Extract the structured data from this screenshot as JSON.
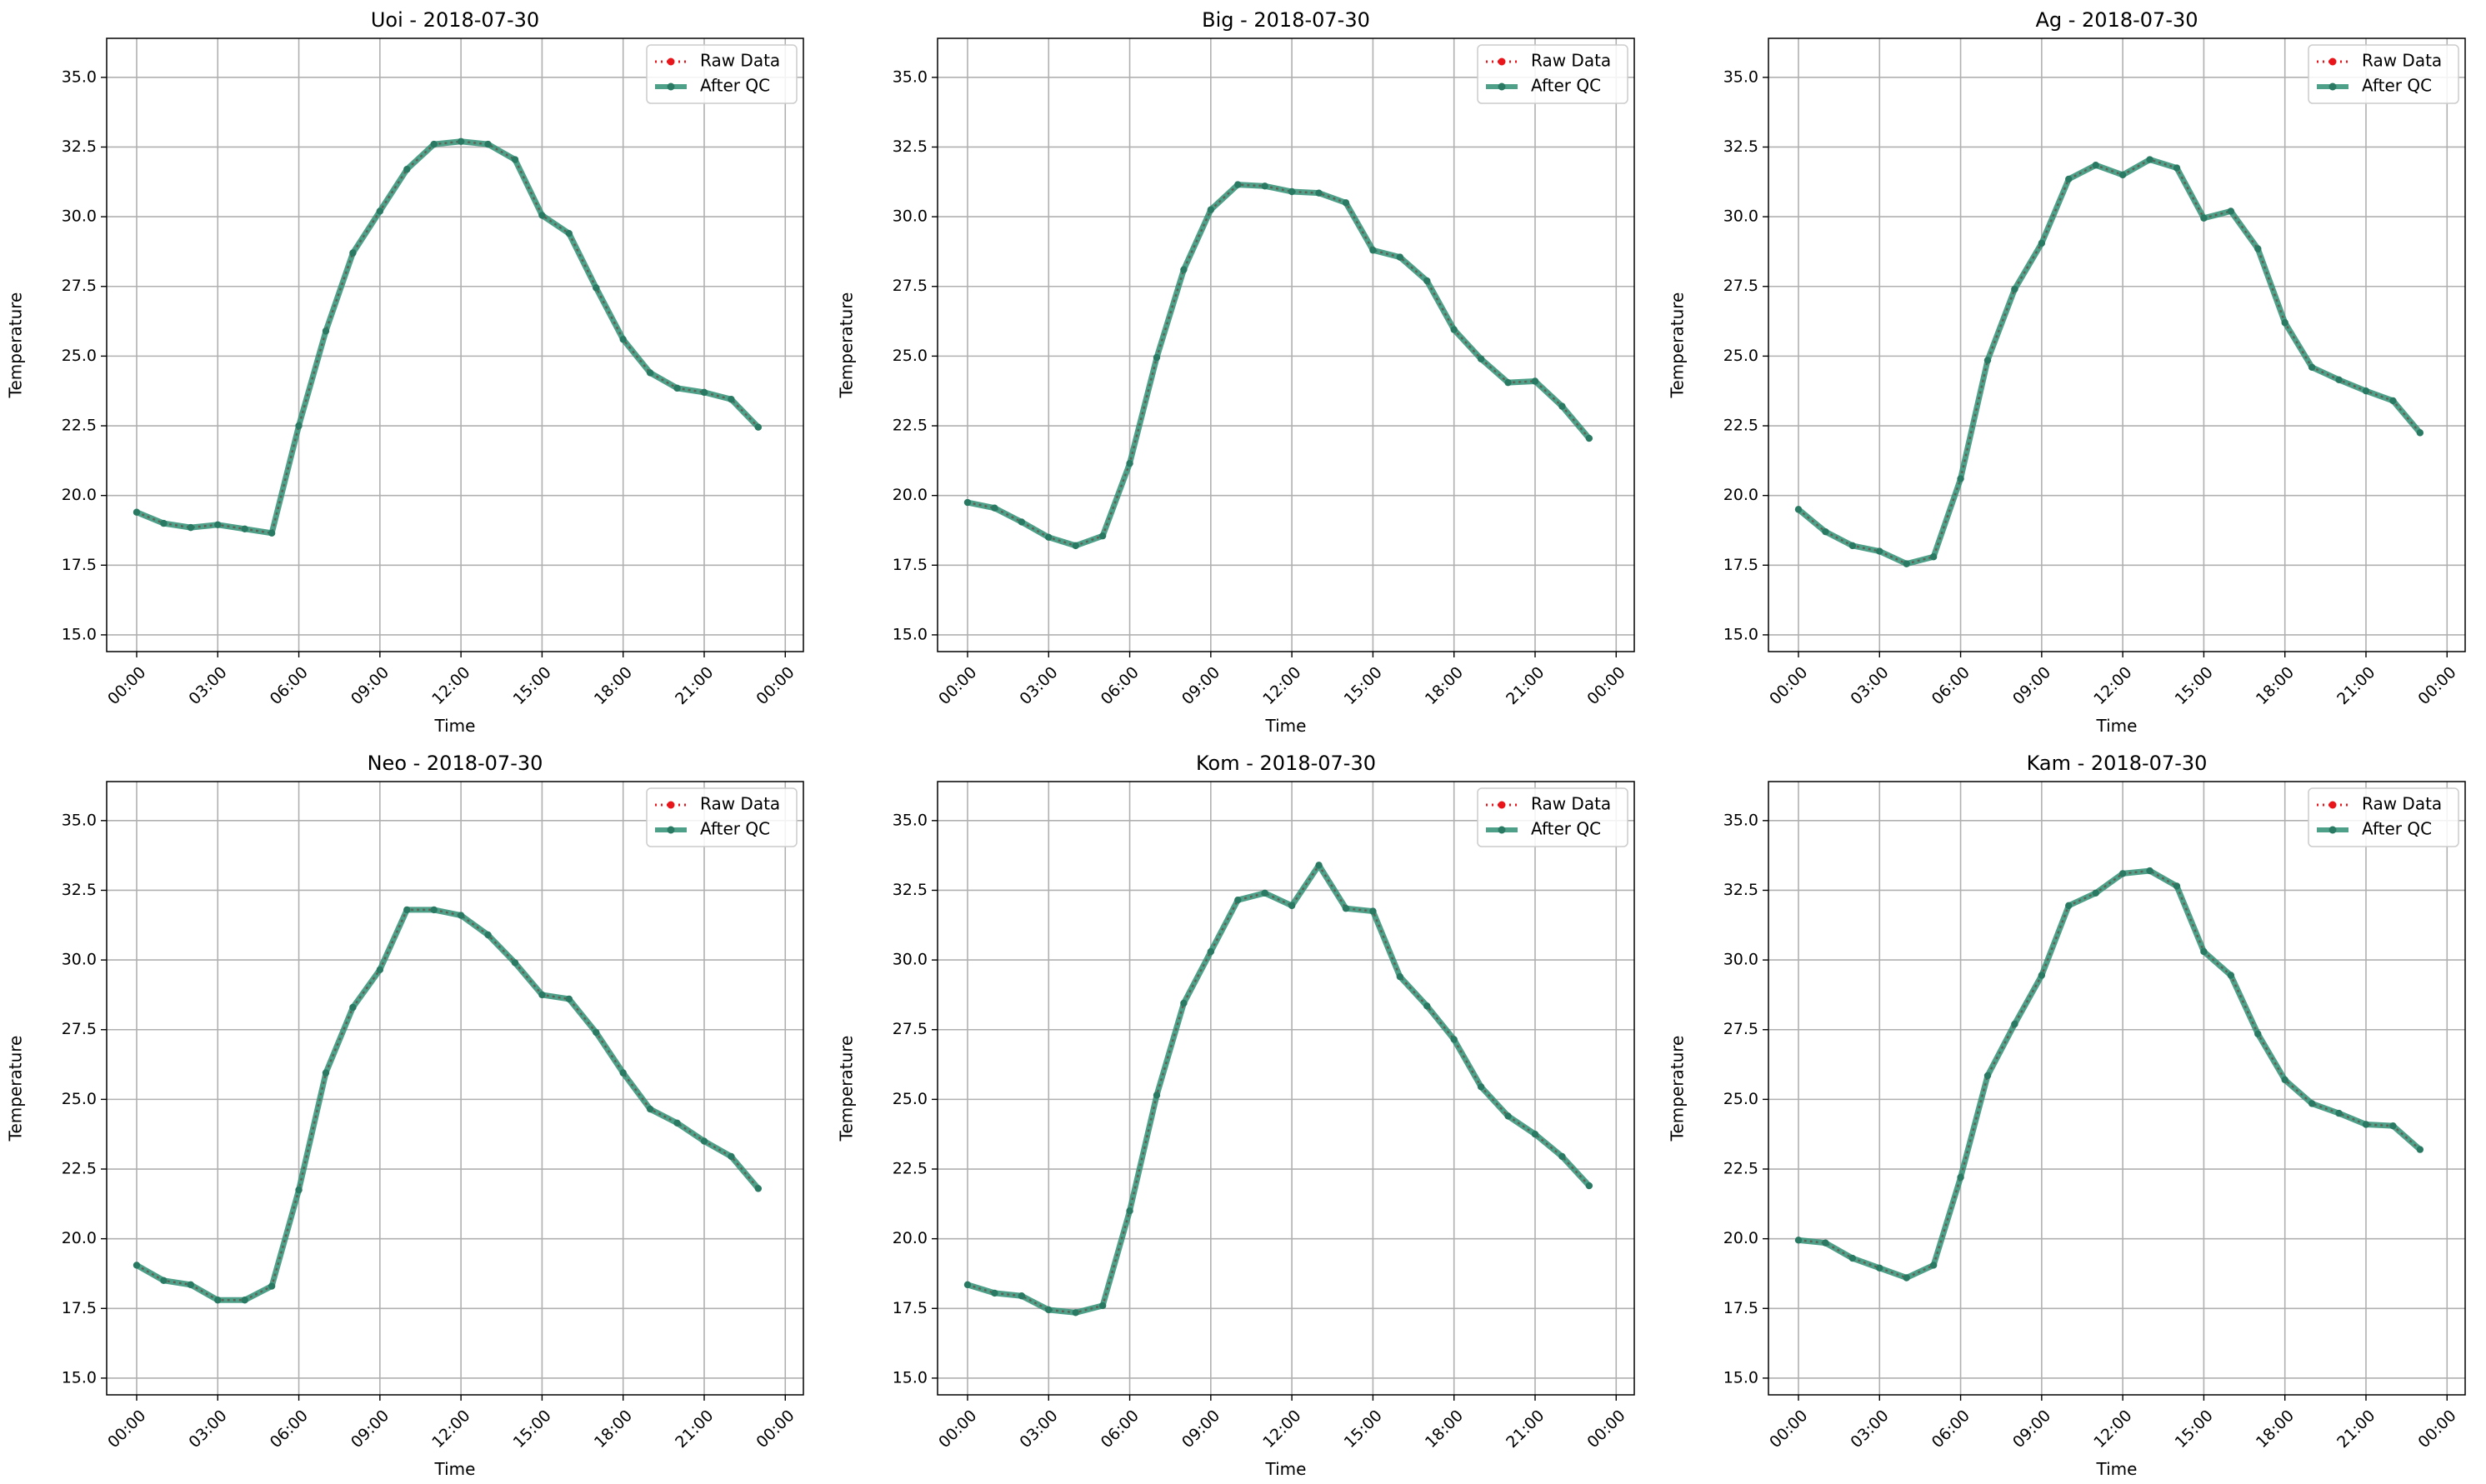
{
  "figure": {
    "rows": 2,
    "cols": 3
  },
  "legend": {
    "raw_label": "Raw Data",
    "qc_label": "After QC",
    "placement": "upper right"
  },
  "colors": {
    "raw": "#e8151b",
    "qc": "#2f8f73",
    "qc_marker": "#2a7a63",
    "grid": "#b0b0b0",
    "axes": "#000000"
  },
  "chart_data": [
    {
      "type": "line",
      "title": "Uoi - 2018-07-30",
      "xlabel": "Time",
      "ylabel": "Temperature",
      "x_ticks": [
        "00:00",
        "03:00",
        "06:00",
        "09:00",
        "12:00",
        "15:00",
        "18:00",
        "21:00",
        "00:00"
      ],
      "y_ticks": [
        "15.0",
        "17.5",
        "20.0",
        "22.5",
        "25.0",
        "27.5",
        "30.0",
        "32.5",
        "35.0"
      ],
      "ylim": [
        14.4,
        36.4
      ],
      "grid": true,
      "x_hours": [
        0,
        1,
        2,
        3,
        4,
        5,
        6,
        7,
        8,
        9,
        10,
        11,
        12,
        13,
        14,
        15,
        16,
        17,
        18,
        19,
        20,
        21,
        22,
        23
      ],
      "series": [
        {
          "name": "Raw Data",
          "values": [
            19.4,
            19.0,
            18.85,
            18.95,
            18.8,
            18.65,
            22.5,
            25.9,
            28.7,
            30.2,
            31.7,
            32.6,
            32.7,
            32.6,
            32.05,
            30.05,
            29.4,
            27.45,
            25.6,
            24.4,
            23.85,
            23.7,
            23.45,
            22.45
          ]
        },
        {
          "name": "After QC",
          "values": [
            19.4,
            19.0,
            18.85,
            18.95,
            18.8,
            18.65,
            22.5,
            25.9,
            28.7,
            30.2,
            31.7,
            32.6,
            32.7,
            32.6,
            32.05,
            30.05,
            29.4,
            27.45,
            25.6,
            24.4,
            23.85,
            23.7,
            23.45,
            22.45
          ]
        }
      ]
    },
    {
      "type": "line",
      "title": "Big - 2018-07-30",
      "xlabel": "Time",
      "ylabel": "Temperature",
      "x_ticks": [
        "00:00",
        "03:00",
        "06:00",
        "09:00",
        "12:00",
        "15:00",
        "18:00",
        "21:00",
        "00:00"
      ],
      "y_ticks": [
        "15.0",
        "17.5",
        "20.0",
        "22.5",
        "25.0",
        "27.5",
        "30.0",
        "32.5",
        "35.0"
      ],
      "ylim": [
        14.4,
        36.4
      ],
      "grid": true,
      "x_hours": [
        0,
        1,
        2,
        3,
        4,
        5,
        6,
        7,
        8,
        9,
        10,
        11,
        12,
        13,
        14,
        15,
        16,
        17,
        18,
        19,
        20,
        21,
        22,
        23
      ],
      "series": [
        {
          "name": "Raw Data",
          "values": [
            19.75,
            19.55,
            19.05,
            18.5,
            18.2,
            18.55,
            21.15,
            24.95,
            28.1,
            30.25,
            31.15,
            31.1,
            30.9,
            30.85,
            30.5,
            28.8,
            28.55,
            27.7,
            25.95,
            24.9,
            24.05,
            24.1,
            23.2,
            22.05
          ]
        },
        {
          "name": "After QC",
          "values": [
            19.75,
            19.55,
            19.05,
            18.5,
            18.2,
            18.55,
            21.15,
            24.95,
            28.1,
            30.25,
            31.15,
            31.1,
            30.9,
            30.85,
            30.5,
            28.8,
            28.55,
            27.7,
            25.95,
            24.9,
            24.05,
            24.1,
            23.2,
            22.05
          ]
        }
      ]
    },
    {
      "type": "line",
      "title": "Ag - 2018-07-30",
      "xlabel": "Time",
      "ylabel": "Temperature",
      "x_ticks": [
        "00:00",
        "03:00",
        "06:00",
        "09:00",
        "12:00",
        "15:00",
        "18:00",
        "21:00",
        "00:00"
      ],
      "y_ticks": [
        "15.0",
        "17.5",
        "20.0",
        "22.5",
        "25.0",
        "27.5",
        "30.0",
        "32.5",
        "35.0"
      ],
      "ylim": [
        14.4,
        36.4
      ],
      "grid": true,
      "x_hours": [
        0,
        1,
        2,
        3,
        4,
        5,
        6,
        7,
        8,
        9,
        10,
        11,
        12,
        13,
        14,
        15,
        16,
        17,
        18,
        19,
        20,
        21,
        22,
        23
      ],
      "series": [
        {
          "name": "Raw Data",
          "values": [
            19.5,
            18.7,
            18.2,
            18.0,
            17.55,
            17.8,
            20.6,
            24.85,
            27.4,
            29.05,
            31.35,
            31.85,
            31.5,
            32.05,
            31.75,
            29.95,
            30.2,
            28.85,
            26.2,
            24.6,
            24.15,
            23.75,
            23.4,
            22.25
          ]
        },
        {
          "name": "After QC",
          "values": [
            19.5,
            18.7,
            18.2,
            18.0,
            17.55,
            17.8,
            20.6,
            24.85,
            27.4,
            29.05,
            31.35,
            31.85,
            31.5,
            32.05,
            31.75,
            29.95,
            30.2,
            28.85,
            26.2,
            24.6,
            24.15,
            23.75,
            23.4,
            22.25
          ]
        }
      ]
    },
    {
      "type": "line",
      "title": "Neo - 2018-07-30",
      "xlabel": "Time",
      "ylabel": "Temperature",
      "x_ticks": [
        "00:00",
        "03:00",
        "06:00",
        "09:00",
        "12:00",
        "15:00",
        "18:00",
        "21:00",
        "00:00"
      ],
      "y_ticks": [
        "15.0",
        "17.5",
        "20.0",
        "22.5",
        "25.0",
        "27.5",
        "30.0",
        "32.5",
        "35.0"
      ],
      "ylim": [
        14.4,
        36.4
      ],
      "grid": true,
      "x_hours": [
        0,
        1,
        2,
        3,
        4,
        5,
        6,
        7,
        8,
        9,
        10,
        11,
        12,
        13,
        14,
        15,
        16,
        17,
        18,
        19,
        20,
        21,
        22,
        23
      ],
      "series": [
        {
          "name": "Raw Data",
          "values": [
            19.05,
            18.5,
            18.35,
            17.8,
            17.8,
            18.3,
            21.75,
            25.95,
            28.3,
            29.65,
            31.8,
            31.8,
            31.6,
            30.9,
            29.9,
            28.75,
            28.6,
            27.4,
            25.95,
            24.65,
            24.15,
            23.5,
            22.95,
            21.8
          ]
        },
        {
          "name": "After QC",
          "values": [
            19.05,
            18.5,
            18.35,
            17.8,
            17.8,
            18.3,
            21.75,
            25.95,
            28.3,
            29.65,
            31.8,
            31.8,
            31.6,
            30.9,
            29.9,
            28.75,
            28.6,
            27.4,
            25.95,
            24.65,
            24.15,
            23.5,
            22.95,
            21.8
          ]
        }
      ]
    },
    {
      "type": "line",
      "title": "Kom - 2018-07-30",
      "xlabel": "Time",
      "ylabel": "Temperature",
      "x_ticks": [
        "00:00",
        "03:00",
        "06:00",
        "09:00",
        "12:00",
        "15:00",
        "18:00",
        "21:00",
        "00:00"
      ],
      "y_ticks": [
        "15.0",
        "17.5",
        "20.0",
        "22.5",
        "25.0",
        "27.5",
        "30.0",
        "32.5",
        "35.0"
      ],
      "ylim": [
        14.4,
        36.4
      ],
      "grid": true,
      "x_hours": [
        0,
        1,
        2,
        3,
        4,
        5,
        6,
        7,
        8,
        9,
        10,
        11,
        12,
        13,
        14,
        15,
        16,
        17,
        18,
        19,
        20,
        21,
        22,
        23
      ],
      "series": [
        {
          "name": "Raw Data",
          "values": [
            18.35,
            18.05,
            17.95,
            17.45,
            17.35,
            17.6,
            21.0,
            25.15,
            28.45,
            30.3,
            32.15,
            32.4,
            31.95,
            33.4,
            31.85,
            31.75,
            29.4,
            28.35,
            27.15,
            25.45,
            24.4,
            23.75,
            22.95,
            21.9
          ]
        },
        {
          "name": "After QC",
          "values": [
            18.35,
            18.05,
            17.95,
            17.45,
            17.35,
            17.6,
            21.0,
            25.15,
            28.45,
            30.3,
            32.15,
            32.4,
            31.95,
            33.4,
            31.85,
            31.75,
            29.4,
            28.35,
            27.15,
            25.45,
            24.4,
            23.75,
            22.95,
            21.9
          ]
        }
      ]
    },
    {
      "type": "line",
      "title": "Kam - 2018-07-30",
      "xlabel": "Time",
      "ylabel": "Temperature",
      "x_ticks": [
        "00:00",
        "03:00",
        "06:00",
        "09:00",
        "12:00",
        "15:00",
        "18:00",
        "21:00",
        "00:00"
      ],
      "y_ticks": [
        "15.0",
        "17.5",
        "20.0",
        "22.5",
        "25.0",
        "27.5",
        "30.0",
        "32.5",
        "35.0"
      ],
      "ylim": [
        14.4,
        36.4
      ],
      "grid": true,
      "x_hours": [
        0,
        1,
        2,
        3,
        4,
        5,
        6,
        7,
        8,
        9,
        10,
        11,
        12,
        13,
        14,
        15,
        16,
        17,
        18,
        19,
        20,
        21,
        22,
        23
      ],
      "series": [
        {
          "name": "Raw Data",
          "values": [
            19.95,
            19.85,
            19.3,
            18.95,
            18.6,
            19.05,
            22.2,
            25.85,
            27.7,
            29.45,
            31.95,
            32.4,
            33.1,
            33.2,
            32.65,
            30.3,
            29.45,
            27.35,
            25.7,
            24.85,
            24.5,
            24.1,
            24.05,
            23.2
          ]
        },
        {
          "name": "After QC",
          "values": [
            19.95,
            19.85,
            19.3,
            18.95,
            18.6,
            19.05,
            22.2,
            25.85,
            27.7,
            29.45,
            31.95,
            32.4,
            33.1,
            33.2,
            32.65,
            30.3,
            29.45,
            27.35,
            25.7,
            24.85,
            24.5,
            24.1,
            24.05,
            23.2
          ]
        }
      ]
    }
  ]
}
